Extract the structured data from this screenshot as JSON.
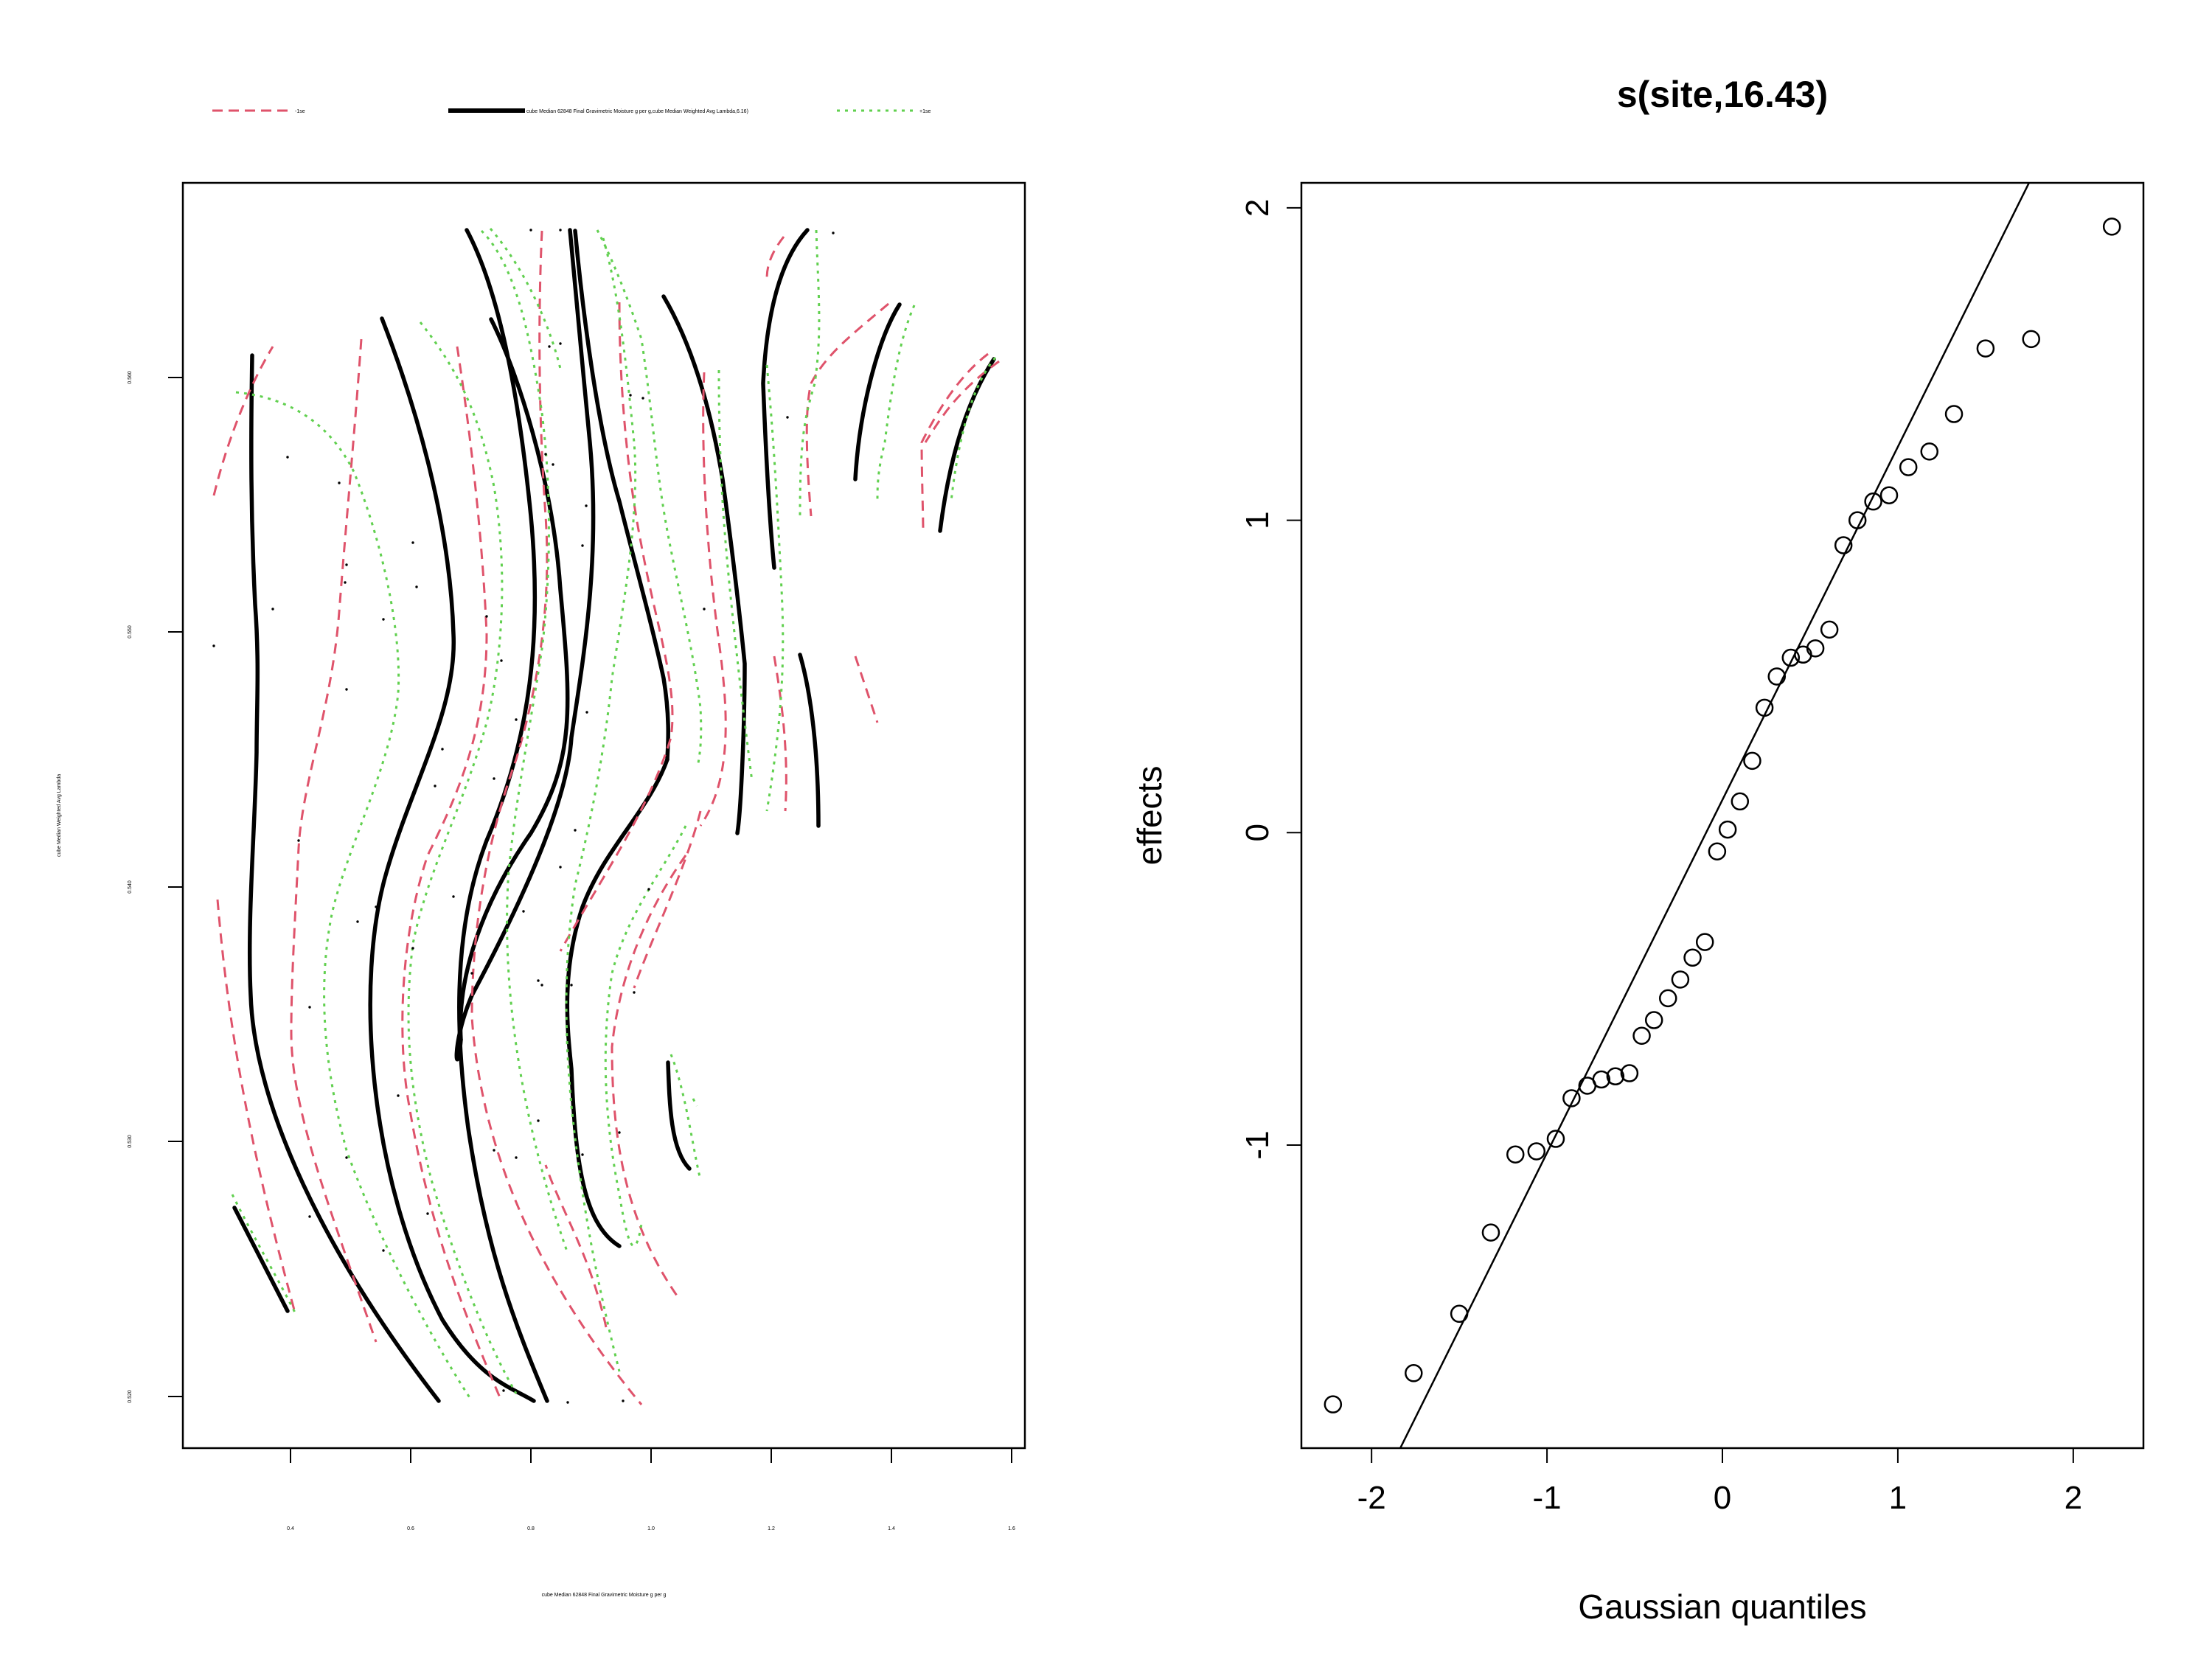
{
  "colors": {
    "fit": "#000000",
    "minus_se": "#DF536B",
    "plus_se": "#61D04F"
  },
  "chart_data": [
    {
      "type": "contour",
      "title": "",
      "legend": {
        "placement": "top",
        "entries": [
          {
            "label": "-1se",
            "style": "dashed",
            "color": "#DF536B"
          },
          {
            "label": "cube Median 62848 Final Gravimetric Moisture g per g,cube Median Weighted Avg Lambda,6.16)",
            "style": "solid",
            "color": "#000000"
          },
          {
            "label": "+1se",
            "style": "dotted",
            "color": "#61D04F"
          }
        ]
      },
      "xlabel": "cube Median 62848 Final Gravimetric Moisture g per g",
      "ylabel": "cube Median Weighted Avg Lambda",
      "xlim": [
        0.22,
        1.62
      ],
      "ylim": [
        0.5185,
        0.5685
      ],
      "x_ticks": [
        "0.4",
        "0.6",
        "0.8",
        "1.0",
        "1.2",
        "1.4",
        "1.6"
      ],
      "y_ticks": [
        "0.520",
        "0.530",
        "0.540",
        "0.550",
        "0.560"
      ]
    },
    {
      "type": "scatter",
      "title": "s(site,16.43)",
      "xlabel": "Gaussian quantiles",
      "ylabel": "effects",
      "xlim": [
        -2.4,
        2.4
      ],
      "ylim": [
        -1.97,
        2.08
      ],
      "x_ticks": [
        "-2",
        "-1",
        "0",
        "1",
        "2"
      ],
      "y_ticks": [
        "-1",
        "0",
        "1",
        "2"
      ],
      "reference_line": {
        "intercept": 0.105,
        "slope": 1.13
      },
      "points": [
        {
          "x": -2.22,
          "y": -1.83
        },
        {
          "x": -1.76,
          "y": -1.73
        },
        {
          "x": -1.5,
          "y": -1.54
        },
        {
          "x": -1.32,
          "y": -1.28
        },
        {
          "x": -1.18,
          "y": -1.03
        },
        {
          "x": -1.06,
          "y": -1.02
        },
        {
          "x": -0.95,
          "y": -0.98
        },
        {
          "x": -0.86,
          "y": -0.85
        },
        {
          "x": -0.77,
          "y": -0.81
        },
        {
          "x": -0.69,
          "y": -0.79
        },
        {
          "x": -0.61,
          "y": -0.78
        },
        {
          "x": -0.53,
          "y": -0.77
        },
        {
          "x": -0.46,
          "y": -0.65
        },
        {
          "x": -0.39,
          "y": -0.6
        },
        {
          "x": -0.31,
          "y": -0.53
        },
        {
          "x": -0.24,
          "y": -0.47
        },
        {
          "x": -0.17,
          "y": -0.4
        },
        {
          "x": -0.1,
          "y": -0.35
        },
        {
          "x": -0.03,
          "y": -0.06
        },
        {
          "x": 0.03,
          "y": 0.01
        },
        {
          "x": 0.1,
          "y": 0.1
        },
        {
          "x": 0.17,
          "y": 0.23
        },
        {
          "x": 0.24,
          "y": 0.4
        },
        {
          "x": 0.31,
          "y": 0.5
        },
        {
          "x": 0.39,
          "y": 0.56
        },
        {
          "x": 0.46,
          "y": 0.57
        },
        {
          "x": 0.53,
          "y": 0.59
        },
        {
          "x": 0.61,
          "y": 0.65
        },
        {
          "x": 0.69,
          "y": 0.92
        },
        {
          "x": 0.77,
          "y": 1.0
        },
        {
          "x": 0.86,
          "y": 1.06
        },
        {
          "x": 0.95,
          "y": 1.08
        },
        {
          "x": 1.06,
          "y": 1.17
        },
        {
          "x": 1.18,
          "y": 1.22
        },
        {
          "x": 1.32,
          "y": 1.34
        },
        {
          "x": 1.5,
          "y": 1.55
        },
        {
          "x": 1.76,
          "y": 1.58
        },
        {
          "x": 2.22,
          "y": 1.94
        }
      ]
    }
  ]
}
